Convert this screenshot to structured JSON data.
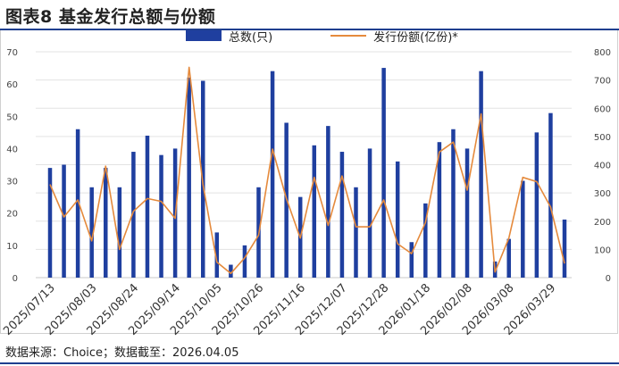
{
  "figure_title": "图表8 基金发行总额与份额",
  "source_note": "数据来源：Choice；数据截至：2026.04.05",
  "colors": {
    "bar": "#1f3f9f",
    "line": "#e58a3c",
    "title_rule": "#1f3f8f"
  },
  "chart_data": {
    "type": "bar+line",
    "title": "图表8 基金发行总额与份额",
    "legend_position": "top",
    "grid": true,
    "x_tick_labels": [
      "2025/07/13",
      "2025/08/03",
      "2025/08/24",
      "2025/09/14",
      "2025/10/05",
      "2025/10/26",
      "2025/11/16",
      "2025/12/07",
      "2025/12/28",
      "2026/01/18",
      "2026/02/08",
      "2026/03/08",
      "2026/03/29"
    ],
    "series": [
      {
        "name": "总数(只)",
        "type": "bar",
        "axis": "left",
        "values": [
          34,
          35,
          46,
          28,
          34,
          28,
          39,
          44,
          38,
          40,
          62,
          61,
          14,
          4,
          10,
          28,
          64,
          48,
          25,
          41,
          47,
          39,
          28,
          40,
          65,
          36,
          11,
          23,
          42,
          46,
          40,
          64,
          5,
          12,
          30,
          45,
          51,
          18
        ]
      },
      {
        "name": "发行份额(亿份)*",
        "type": "line",
        "axis": "right",
        "values": [
          330,
          215,
          275,
          130,
          395,
          100,
          235,
          280,
          270,
          210,
          745,
          330,
          55,
          15,
          70,
          150,
          455,
          280,
          140,
          355,
          185,
          360,
          180,
          180,
          275,
          120,
          85,
          195,
          445,
          480,
          310,
          580,
          20,
          140,
          355,
          340,
          250,
          50
        ]
      }
    ],
    "y_left": {
      "min": 0,
      "max": 70,
      "ticks": [
        0,
        10,
        20,
        30,
        40,
        50,
        60,
        70
      ]
    },
    "y_right": {
      "min": 0,
      "max": 800,
      "ticks": [
        0,
        100,
        200,
        300,
        400,
        500,
        600,
        700,
        800
      ]
    }
  }
}
